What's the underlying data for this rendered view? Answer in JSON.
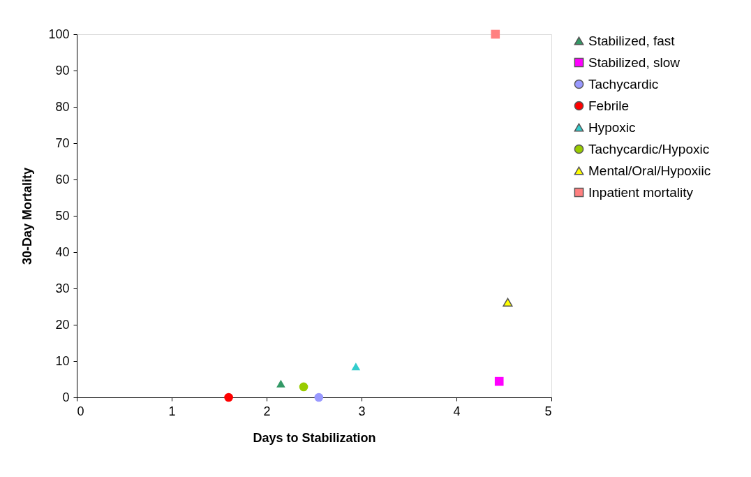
{
  "chart_data": {
    "type": "scatter",
    "xlabel": "Days to Stabilization",
    "ylabel": "30-Day Mortality",
    "xlim": [
      0,
      5
    ],
    "xticks": [
      0,
      1,
      2,
      3,
      4,
      5
    ],
    "ylim": [
      0,
      100
    ],
    "yticks": [
      0,
      10,
      20,
      30,
      40,
      50,
      60,
      70,
      80,
      90,
      100
    ],
    "grid": false,
    "legend": "right",
    "series": [
      {
        "name": "Stabilized, fast",
        "color": "#339966",
        "marker": "triangle",
        "x": [
          2.15
        ],
        "values": [
          3.8
        ]
      },
      {
        "name": "Stabilized, slow",
        "color": "#ff00ff",
        "marker": "square",
        "x": [
          4.45
        ],
        "values": [
          4.4
        ]
      },
      {
        "name": "Tachycardic",
        "color": "#9999ff",
        "marker": "circle",
        "x": [
          2.55
        ],
        "values": [
          0
        ]
      },
      {
        "name": "Febrile",
        "color": "#ff0000",
        "marker": "circle",
        "x": [
          1.6
        ],
        "values": [
          0
        ]
      },
      {
        "name": "Hypoxic",
        "color": "#33cccc",
        "marker": "triangle",
        "x": [
          2.94
        ],
        "values": [
          8.5
        ]
      },
      {
        "name": "Tachycardic/Hypoxic",
        "color": "#99cc00",
        "marker": "circle",
        "x": [
          2.39
        ],
        "values": [
          2.9
        ]
      },
      {
        "name": "Mental/Oral/Hypoxiic",
        "color": "#ffff00",
        "marker": "triangle",
        "x": [
          4.54
        ],
        "values": [
          26.2
        ]
      },
      {
        "name": "Inpatient mortality",
        "color": "#ff8080",
        "marker": "square",
        "x": [
          4.41
        ],
        "values": [
          100
        ]
      }
    ]
  }
}
